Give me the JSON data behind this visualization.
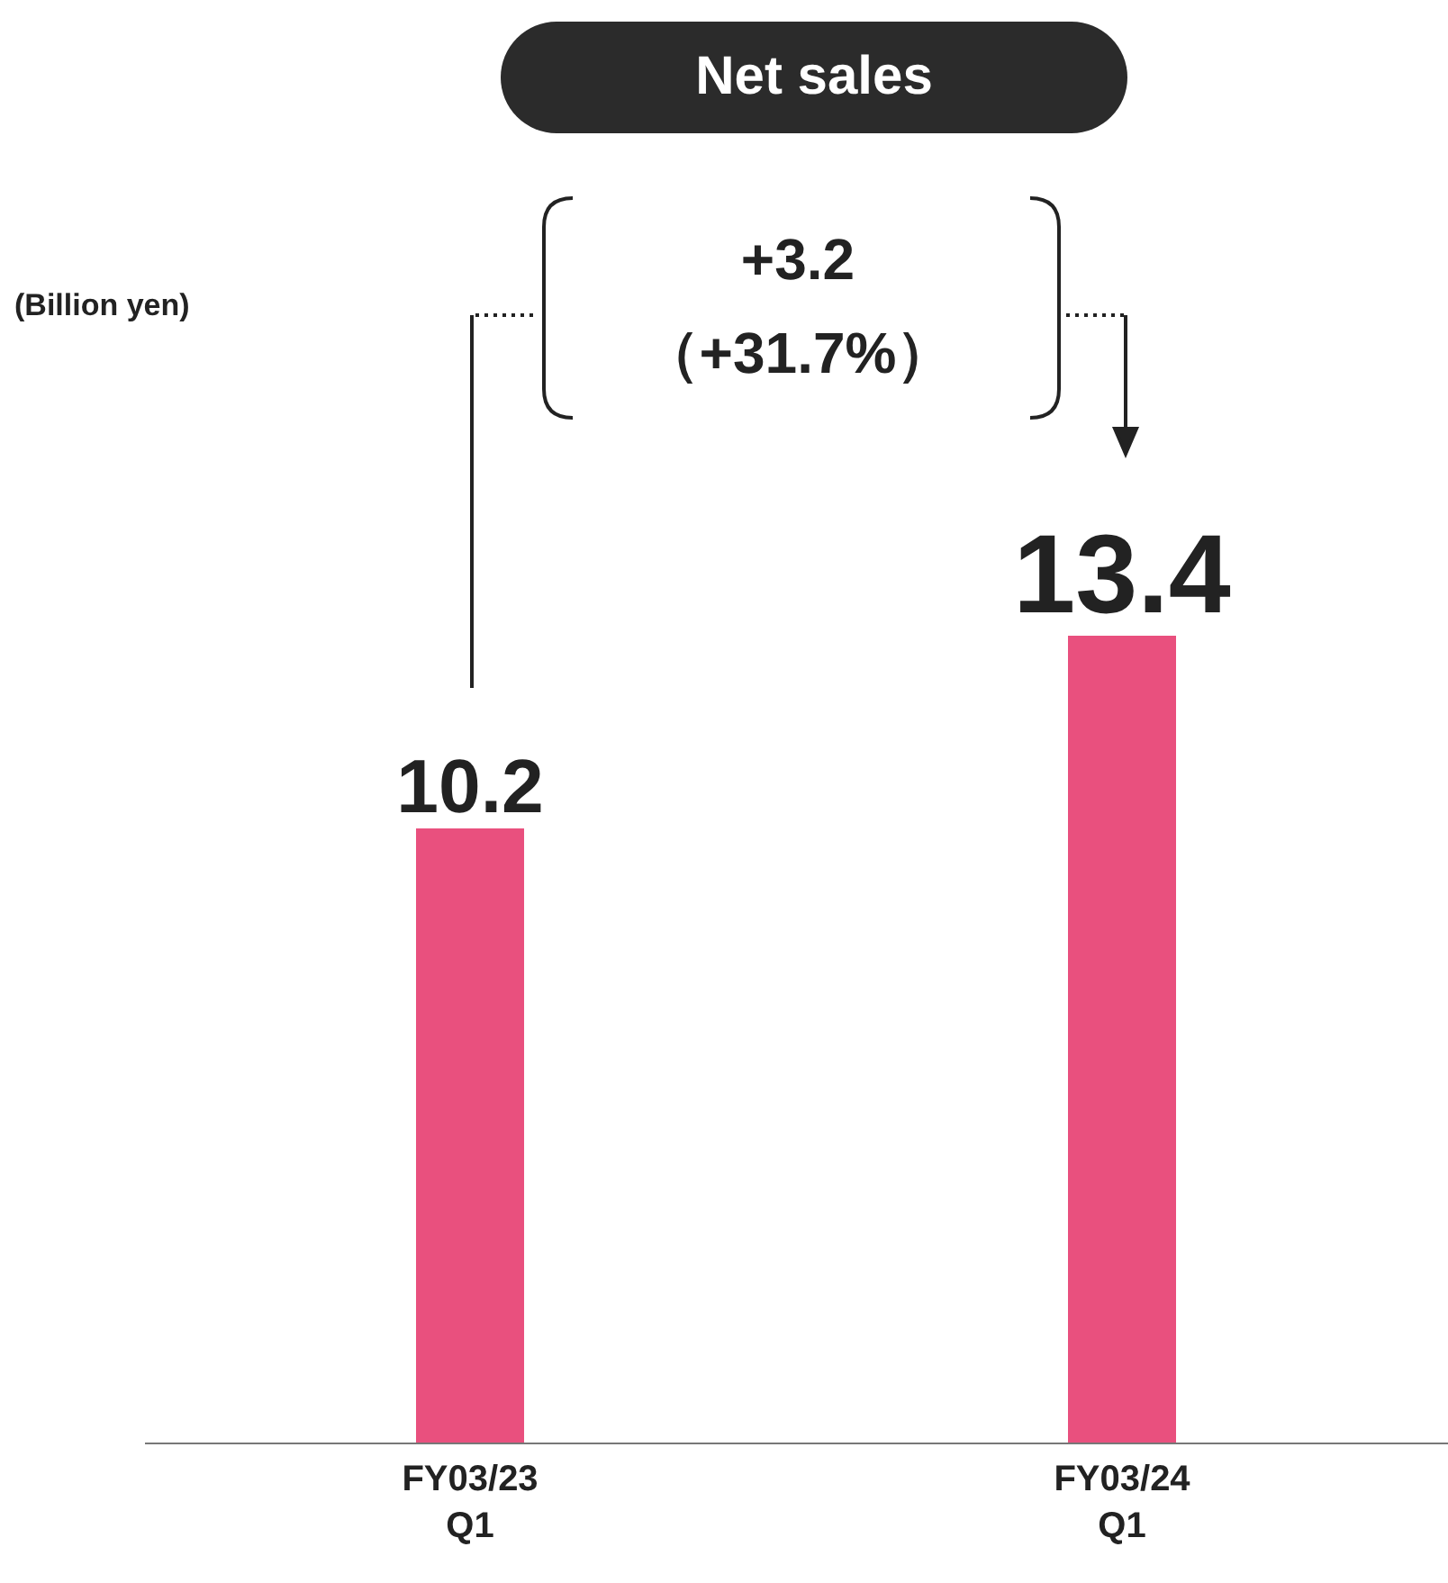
{
  "chart_data": {
    "type": "bar",
    "title": "Net sales",
    "categories": [
      "FY03/23 Q1",
      "FY03/24 Q1"
    ],
    "values": [
      10.2,
      13.4
    ],
    "color": "#e9507e",
    "data_labels": true,
    "annotations": [
      "(Billion yen)",
      "+3.2",
      "（+31.7%）"
    ]
  }
}
